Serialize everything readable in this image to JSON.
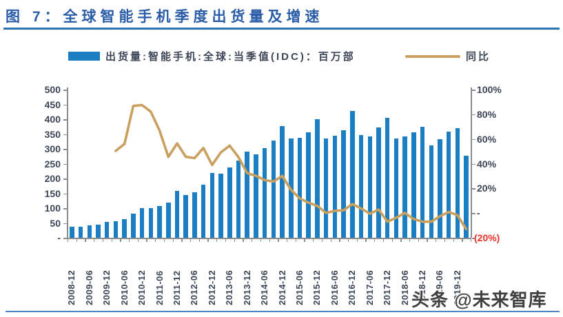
{
  "figure": {
    "title": "图 7：全球智能手机季度出货量及增速",
    "watermark": "头条 @未来智库"
  },
  "legend": {
    "bars_label": "出货量:智能手机:全球:当季值(IDC)：百万部",
    "line_label": "同比"
  },
  "colors": {
    "bar": "#1b7ec2",
    "line": "#c9a05e",
    "title_blue": "#2a5ca8",
    "rule_blue": "#2e74b5",
    "rule_blue_light": "#4c88c8",
    "axis_text": "#3d4557",
    "negative_red": "#e8332a",
    "axis_line": "#8c8c8c",
    "watermark_gray": "#3f3f3f"
  },
  "chart_data": {
    "type": "bar+line",
    "title": "全球智能手机季度出货量及增速",
    "x": [
      "2008Q4",
      "2009Q1",
      "2009Q2",
      "2009Q3",
      "2009Q4",
      "2010Q1",
      "2010Q2",
      "2010Q3",
      "2010Q4",
      "2011Q1",
      "2011Q2",
      "2011Q3",
      "2011Q4",
      "2012Q1",
      "2012Q2",
      "2012Q3",
      "2012Q4",
      "2013Q1",
      "2013Q2",
      "2013Q3",
      "2013Q4",
      "2014Q1",
      "2014Q2",
      "2014Q3",
      "2014Q4",
      "2015Q1",
      "2015Q2",
      "2015Q3",
      "2015Q4",
      "2016Q1",
      "2016Q2",
      "2016Q3",
      "2016Q4",
      "2017Q1",
      "2017Q2",
      "2017Q3",
      "2017Q4",
      "2018Q1",
      "2018Q2",
      "2018Q3",
      "2018Q4",
      "2019Q1",
      "2019Q2",
      "2019Q3",
      "2019Q4",
      "2020Q1"
    ],
    "x_tick_labels": [
      "2008-12",
      "2009-06",
      "2009-12",
      "2010-06",
      "2010-12",
      "2011-06",
      "2011-12",
      "2012-06",
      "2012-12",
      "2013-06",
      "2013-12",
      "2014-06",
      "2014-12",
      "2015-06",
      "2015-12",
      "2016-06",
      "2016-12",
      "2017-06",
      "2017-12",
      "2018-06",
      "2018-12",
      "2019-06",
      "2019-12"
    ],
    "x_tick_label_every": 2,
    "series": [
      {
        "name": "出货量:智能手机:全球:当季值(IDC)：百万部",
        "type": "bar",
        "axis": "left",
        "unit": "百万部",
        "values": [
          38.1,
          36.4,
          40.9,
          43.3,
          53.8,
          54.7,
          63.8,
          80.9,
          100.9,
          99.6,
          106.5,
          117.7,
          157.8,
          144.9,
          153.9,
          179.7,
          219.4,
          216.2,
          237.9,
          261.1,
          290.2,
          281.5,
          301.3,
          327.6,
          377.5,
          334.4,
          337.2,
          355.2,
          399.5,
          334.9,
          343.3,
          362.9,
          428.5,
          347.4,
          341.6,
          373.1,
          403.5,
          334.3,
          342.0,
          355.2,
          375.4,
          310.8,
          333.2,
          358.3,
          368.8,
          275.8
        ]
      },
      {
        "name": "同比",
        "type": "line",
        "axis": "right",
        "unit": "%",
        "values": [
          null,
          null,
          null,
          null,
          null,
          50.3,
          56.0,
          86.8,
          87.5,
          82.1,
          66.9,
          45.5,
          56.4,
          45.5,
          44.5,
          52.7,
          39.0,
          49.2,
          54.6,
          45.3,
          32.3,
          30.2,
          26.7,
          25.5,
          30.1,
          18.8,
          11.9,
          8.4,
          5.8,
          0.1,
          1.8,
          2.2,
          7.3,
          3.7,
          -0.5,
          2.8,
          -7.0,
          -3.8,
          0.1,
          -4.8,
          -7.0,
          -7.0,
          -2.6,
          0.9,
          -1.8,
          -13.0
        ]
      }
    ],
    "left_axis": {
      "min": 0,
      "max": 500,
      "step": 50,
      "tick_labels": [
        "500",
        "450",
        "400",
        "350",
        "300",
        "250",
        "200",
        "150",
        "100",
        "50",
        "-"
      ]
    },
    "right_axis": {
      "min": -20,
      "max": 100,
      "step": 20,
      "tick_labels": [
        "100%",
        "80%",
        "60%",
        "40%",
        "20%",
        "-",
        "(20%)"
      ]
    },
    "grid": false,
    "legend_position": "top"
  }
}
